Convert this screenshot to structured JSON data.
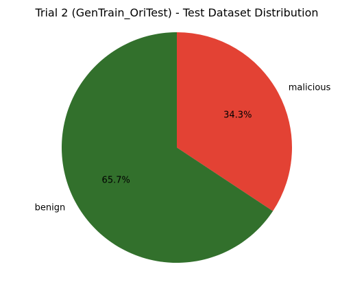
{
  "chart_data": {
    "type": "pie",
    "title": "Trial 2 (GenTrain_OriTest) - Test Dataset Distribution",
    "slices": [
      {
        "label": "malicious",
        "value": 34.3,
        "percent_label": "34.3%",
        "color": "#e34234"
      },
      {
        "label": "benign",
        "value": 65.7,
        "percent_label": "65.7%",
        "color": "#32702c"
      }
    ],
    "start_angle_deg": 90,
    "direction": "clockwise",
    "legend": "none"
  }
}
